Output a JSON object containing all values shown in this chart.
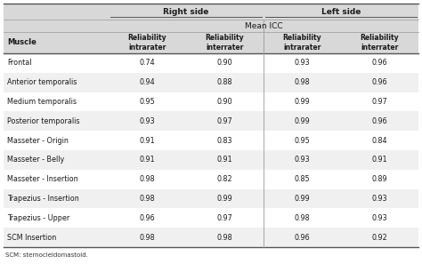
{
  "title": "Mean ICC",
  "col_group1": "Right side",
  "col_group2": "Left side",
  "col_headers": [
    "Reliability\nintrarater",
    "Reliability\ninterrater",
    "Reliability\nintrarater",
    "Reliability\ninterrater"
  ],
  "row_header": "Muscle",
  "muscles": [
    "Frontal",
    "Anterior temporalis",
    "Medium temporalis",
    "Posterior temporalis",
    "Masseter - Origin",
    "Masseter - Belly",
    "Masseter - Insertion",
    "Trapezius - Insertion",
    "Trapezius - Upper",
    "SCM Insertion"
  ],
  "values": [
    [
      0.74,
      0.9,
      0.93,
      0.96
    ],
    [
      0.94,
      0.88,
      0.98,
      0.96
    ],
    [
      0.95,
      0.9,
      0.99,
      0.97
    ],
    [
      0.93,
      0.97,
      0.99,
      0.96
    ],
    [
      0.91,
      0.83,
      0.95,
      0.84
    ],
    [
      0.91,
      0.91,
      0.93,
      0.91
    ],
    [
      0.98,
      0.82,
      0.85,
      0.89
    ],
    [
      0.98,
      0.99,
      0.99,
      0.93
    ],
    [
      0.96,
      0.97,
      0.98,
      0.93
    ],
    [
      0.98,
      0.98,
      0.96,
      0.92
    ]
  ],
  "footnote": "SCM: sternocleidomastoid.",
  "bg_header": "#d8d8d8",
  "bg_white": "#ffffff",
  "bg_alt": "#f0f0f0",
  "text_color": "#1a1a1a",
  "border_color": "#555555",
  "thin_line_color": "#999999"
}
